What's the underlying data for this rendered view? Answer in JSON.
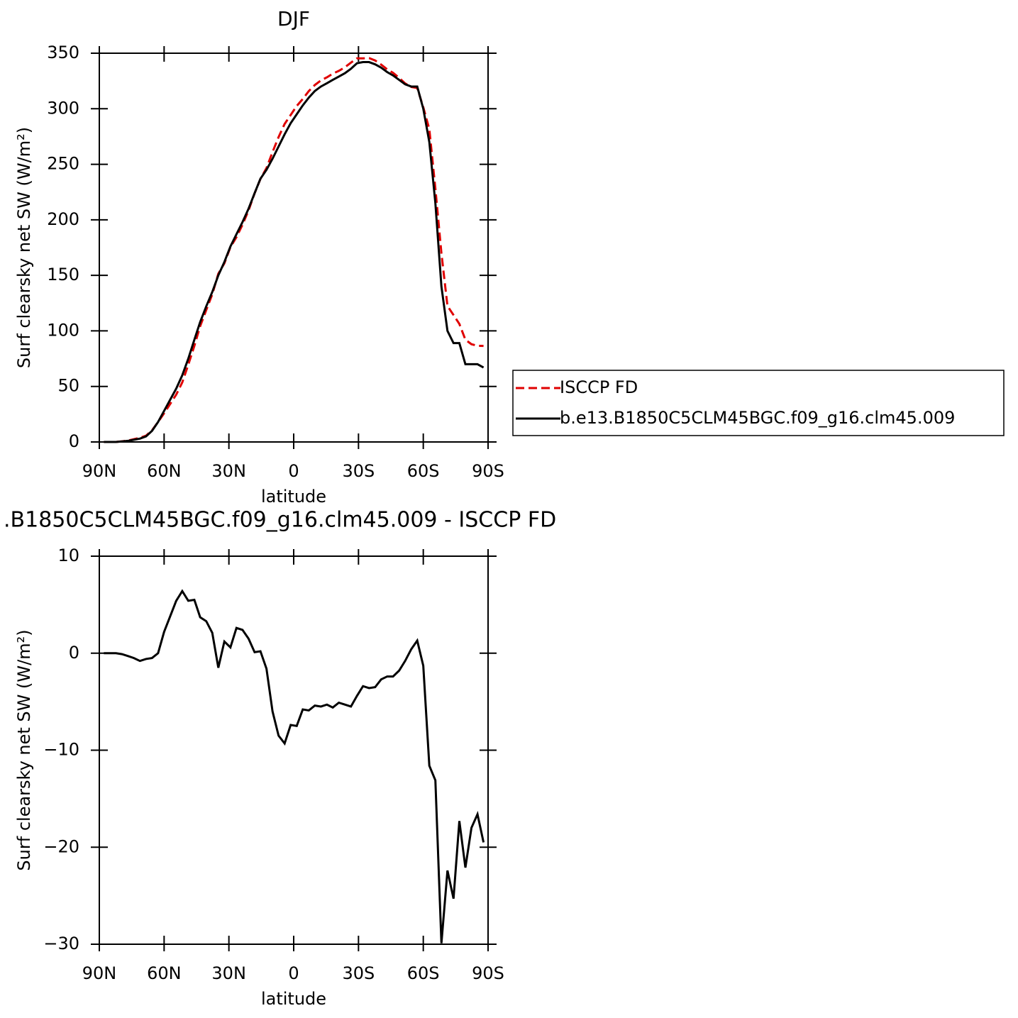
{
  "chart_data": [
    {
      "type": "line",
      "title": "DJF",
      "xlabel": "latitude",
      "ylabel": "Surf clearsky net SW (W/m²)",
      "x": [
        87.9,
        85.1,
        82.3,
        79.5,
        76.7,
        74.0,
        71.2,
        68.4,
        65.6,
        62.8,
        60.0,
        57.2,
        54.4,
        51.6,
        48.8,
        46.0,
        43.3,
        40.5,
        37.7,
        34.9,
        32.1,
        29.3,
        26.5,
        23.7,
        20.9,
        18.1,
        15.4,
        12.6,
        9.8,
        7.0,
        4.2,
        1.4,
        -1.4,
        -4.2,
        -7.0,
        -9.8,
        -12.6,
        -15.4,
        -18.1,
        -20.9,
        -23.7,
        -26.5,
        -29.3,
        -32.1,
        -34.9,
        -37.7,
        -40.5,
        -43.3,
        -46.0,
        -48.8,
        -51.6,
        -54.4,
        -57.2,
        -60.0,
        -62.8,
        -65.6,
        -68.4,
        -71.2,
        -74.0,
        -76.7,
        -79.5,
        -82.3,
        -85.1,
        -87.9
      ],
      "series": [
        {
          "name": "ISCCP FD",
          "color": "#e00000",
          "dashed": true,
          "values": [
            0,
            0,
            0,
            0.6,
            1.3,
            2.5,
            3.8,
            5.6,
            10.5,
            18,
            25.8,
            34.2,
            42.6,
            53.6,
            69.6,
            86.5,
            104.3,
            118.7,
            132.9,
            151.5,
            160.8,
            175.4,
            184.4,
            195.6,
            208.5,
            223.9,
            236.8,
            246.6,
            261,
            274.5,
            286.3,
            294.4,
            302.5,
            308.8,
            315.9,
            321.4,
            325.5,
            328.3,
            331.6,
            334.1,
            337.3,
            341.5,
            345.4,
            345.4,
            345.6,
            343.5,
            339.7,
            335.4,
            332.4,
            327.8,
            322.8,
            319.6,
            318.7,
            301.3,
            281.6,
            228.1,
            169.9,
            122.4,
            114.3,
            106.3,
            92.1,
            88,
            86.6,
            86.5
          ]
        },
        {
          "name": "b.e13.B1850C5CLM45BGC.f09_g16.clm45.009",
          "color": "#000000",
          "dashed": false,
          "values": [
            0,
            0,
            0,
            0.5,
            1,
            2,
            3,
            5,
            10,
            18,
            28,
            38,
            48,
            60,
            75,
            92,
            108,
            122,
            135,
            150,
            162,
            176,
            187,
            198,
            210,
            224,
            237,
            245,
            255,
            266,
            277,
            287,
            295,
            303,
            310,
            316,
            320,
            323,
            326,
            329,
            332,
            336,
            341,
            342,
            342,
            340,
            337,
            333,
            330,
            326,
            322,
            320,
            320,
            300,
            270,
            215,
            140,
            100,
            89,
            89,
            70,
            70,
            70,
            67
          ]
        }
      ],
      "xlim": [
        90,
        -90
      ],
      "xticks": [
        {
          "value": 90,
          "label": "90N"
        },
        {
          "value": 60,
          "label": "60N"
        },
        {
          "value": 30,
          "label": "30N"
        },
        0,
        {
          "value": -30,
          "label": "30S"
        },
        {
          "value": -60,
          "label": "60S"
        },
        {
          "value": -90,
          "label": "90S"
        }
      ],
      "ylim": [
        0,
        350
      ],
      "yticks": [
        0,
        50,
        100,
        150,
        200,
        250,
        300,
        350
      ],
      "legend": "right"
    },
    {
      "type": "line",
      "title": ".B1850C5CLM45BGC.f09_g16.clm45.009 - ISCCP FD",
      "xlabel": "latitude",
      "ylabel": "Surf clearsky net SW (W/m²)",
      "x": [
        87.9,
        85.1,
        82.3,
        79.5,
        76.7,
        74.0,
        71.2,
        68.4,
        65.6,
        62.8,
        60.0,
        57.2,
        54.4,
        51.6,
        48.8,
        46.0,
        43.3,
        40.5,
        37.7,
        34.9,
        32.1,
        29.3,
        26.5,
        23.7,
        20.9,
        18.1,
        15.4,
        12.6,
        9.8,
        7.0,
        4.2,
        1.4,
        -1.4,
        -4.2,
        -7.0,
        -9.8,
        -12.6,
        -15.4,
        -18.1,
        -20.9,
        -23.7,
        -26.5,
        -29.3,
        -32.1,
        -34.9,
        -37.7,
        -40.5,
        -43.3,
        -46.0,
        -48.8,
        -51.6,
        -54.4,
        -57.2,
        -60.0,
        -62.8,
        -65.6,
        -68.4,
        -71.2,
        -74.0,
        -76.7,
        -79.5,
        -82.3,
        -85.1,
        -87.9
      ],
      "series": [
        {
          "color": "#000000",
          "values": [
            0,
            0,
            0,
            -0.1,
            -0.3,
            -0.5,
            -0.8,
            -0.6,
            -0.5,
            0,
            2.2,
            3.8,
            5.4,
            6.4,
            5.4,
            5.5,
            3.7,
            3.3,
            2.1,
            -1.5,
            1.2,
            0.6,
            2.6,
            2.4,
            1.5,
            0.1,
            0.2,
            -1.6,
            -6,
            -8.5,
            -9.3,
            -7.4,
            -7.5,
            -5.8,
            -5.9,
            -5.4,
            -5.5,
            -5.3,
            -5.6,
            -5.1,
            -5.3,
            -5.5,
            -4.4,
            -3.4,
            -3.6,
            -3.5,
            -2.7,
            -2.4,
            -2.4,
            -1.8,
            -0.8,
            0.4,
            1.3,
            -1.3,
            -11.6,
            -13.1,
            -29.9,
            -22.4,
            -25.3,
            -17.3,
            -22.1,
            -18,
            -16.6,
            -19.5
          ]
        }
      ],
      "xlim": [
        90,
        -90
      ],
      "xticks": [
        {
          "value": 90,
          "label": "90N"
        },
        {
          "value": 60,
          "label": "60N"
        },
        {
          "value": 30,
          "label": "30N"
        },
        0,
        {
          "value": -30,
          "label": "30S"
        },
        {
          "value": -60,
          "label": "60S"
        },
        {
          "value": -90,
          "label": "90S"
        }
      ],
      "ylim": [
        -30,
        10
      ],
      "yticks": [
        {
          "value": -30,
          "label": "−30"
        },
        {
          "value": -20,
          "label": "−20"
        },
        {
          "value": -10,
          "label": "−10"
        },
        0,
        10
      ]
    }
  ]
}
